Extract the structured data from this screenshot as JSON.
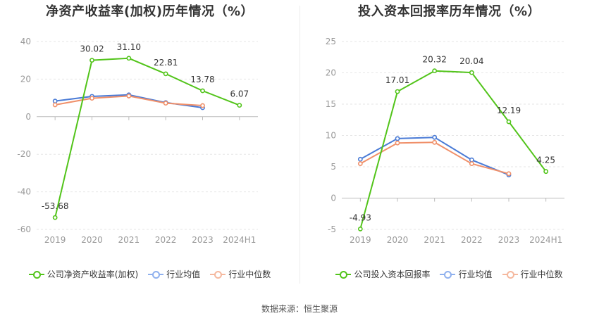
{
  "source_text": "数据来源：恒生聚源",
  "chart_data": [
    {
      "type": "line",
      "title": "净资产收益率(加权)历年情况（%）",
      "categories": [
        "2019",
        "2020",
        "2021",
        "2022",
        "2023",
        "2024H1"
      ],
      "ylim": [
        -60,
        40
      ],
      "yticks": [
        "40",
        "20",
        "0",
        "-20",
        "-40",
        "-60"
      ],
      "series": [
        {
          "name": "公司净资产收益率(加权)",
          "color": "#52c41a",
          "labeled": true,
          "values": [
            -53.68,
            30.02,
            31.1,
            22.81,
            13.78,
            6.07
          ],
          "labels": [
            "-53.68",
            "30.02",
            "31.10",
            "22.81",
            "13.78",
            "6.07"
          ]
        },
        {
          "name": "行业均值",
          "color": "#4a7bd6",
          "labeled": false,
          "values": [
            8.3,
            10.8,
            11.6,
            7.5,
            4.8,
            null
          ]
        },
        {
          "name": "行业中位数",
          "color": "#f0906a",
          "labeled": false,
          "values": [
            6.3,
            9.8,
            11.0,
            7.2,
            5.9,
            null
          ]
        }
      ]
    },
    {
      "type": "line",
      "title": "投入资本回报率历年情况（%）",
      "categories": [
        "2019",
        "2020",
        "2021",
        "2022",
        "2023",
        "2024H1"
      ],
      "ylim": [
        -5,
        25
      ],
      "yticks": [
        "25",
        "20",
        "15",
        "10",
        "5",
        "0",
        "-5"
      ],
      "series": [
        {
          "name": "公司投入资本回报率",
          "color": "#52c41a",
          "labeled": true,
          "values": [
            -4.93,
            17.01,
            20.32,
            20.04,
            12.19,
            4.25
          ],
          "labels": [
            "-4.93",
            "17.01",
            "20.32",
            "20.04",
            "12.19",
            "4.25"
          ]
        },
        {
          "name": "行业均值",
          "color": "#4a7bd6",
          "labeled": false,
          "values": [
            6.2,
            9.5,
            9.7,
            6.1,
            3.7,
            null
          ]
        },
        {
          "name": "行业中位数",
          "color": "#f0906a",
          "labeled": false,
          "values": [
            5.5,
            8.8,
            8.9,
            5.5,
            3.9,
            null
          ]
        }
      ]
    }
  ]
}
